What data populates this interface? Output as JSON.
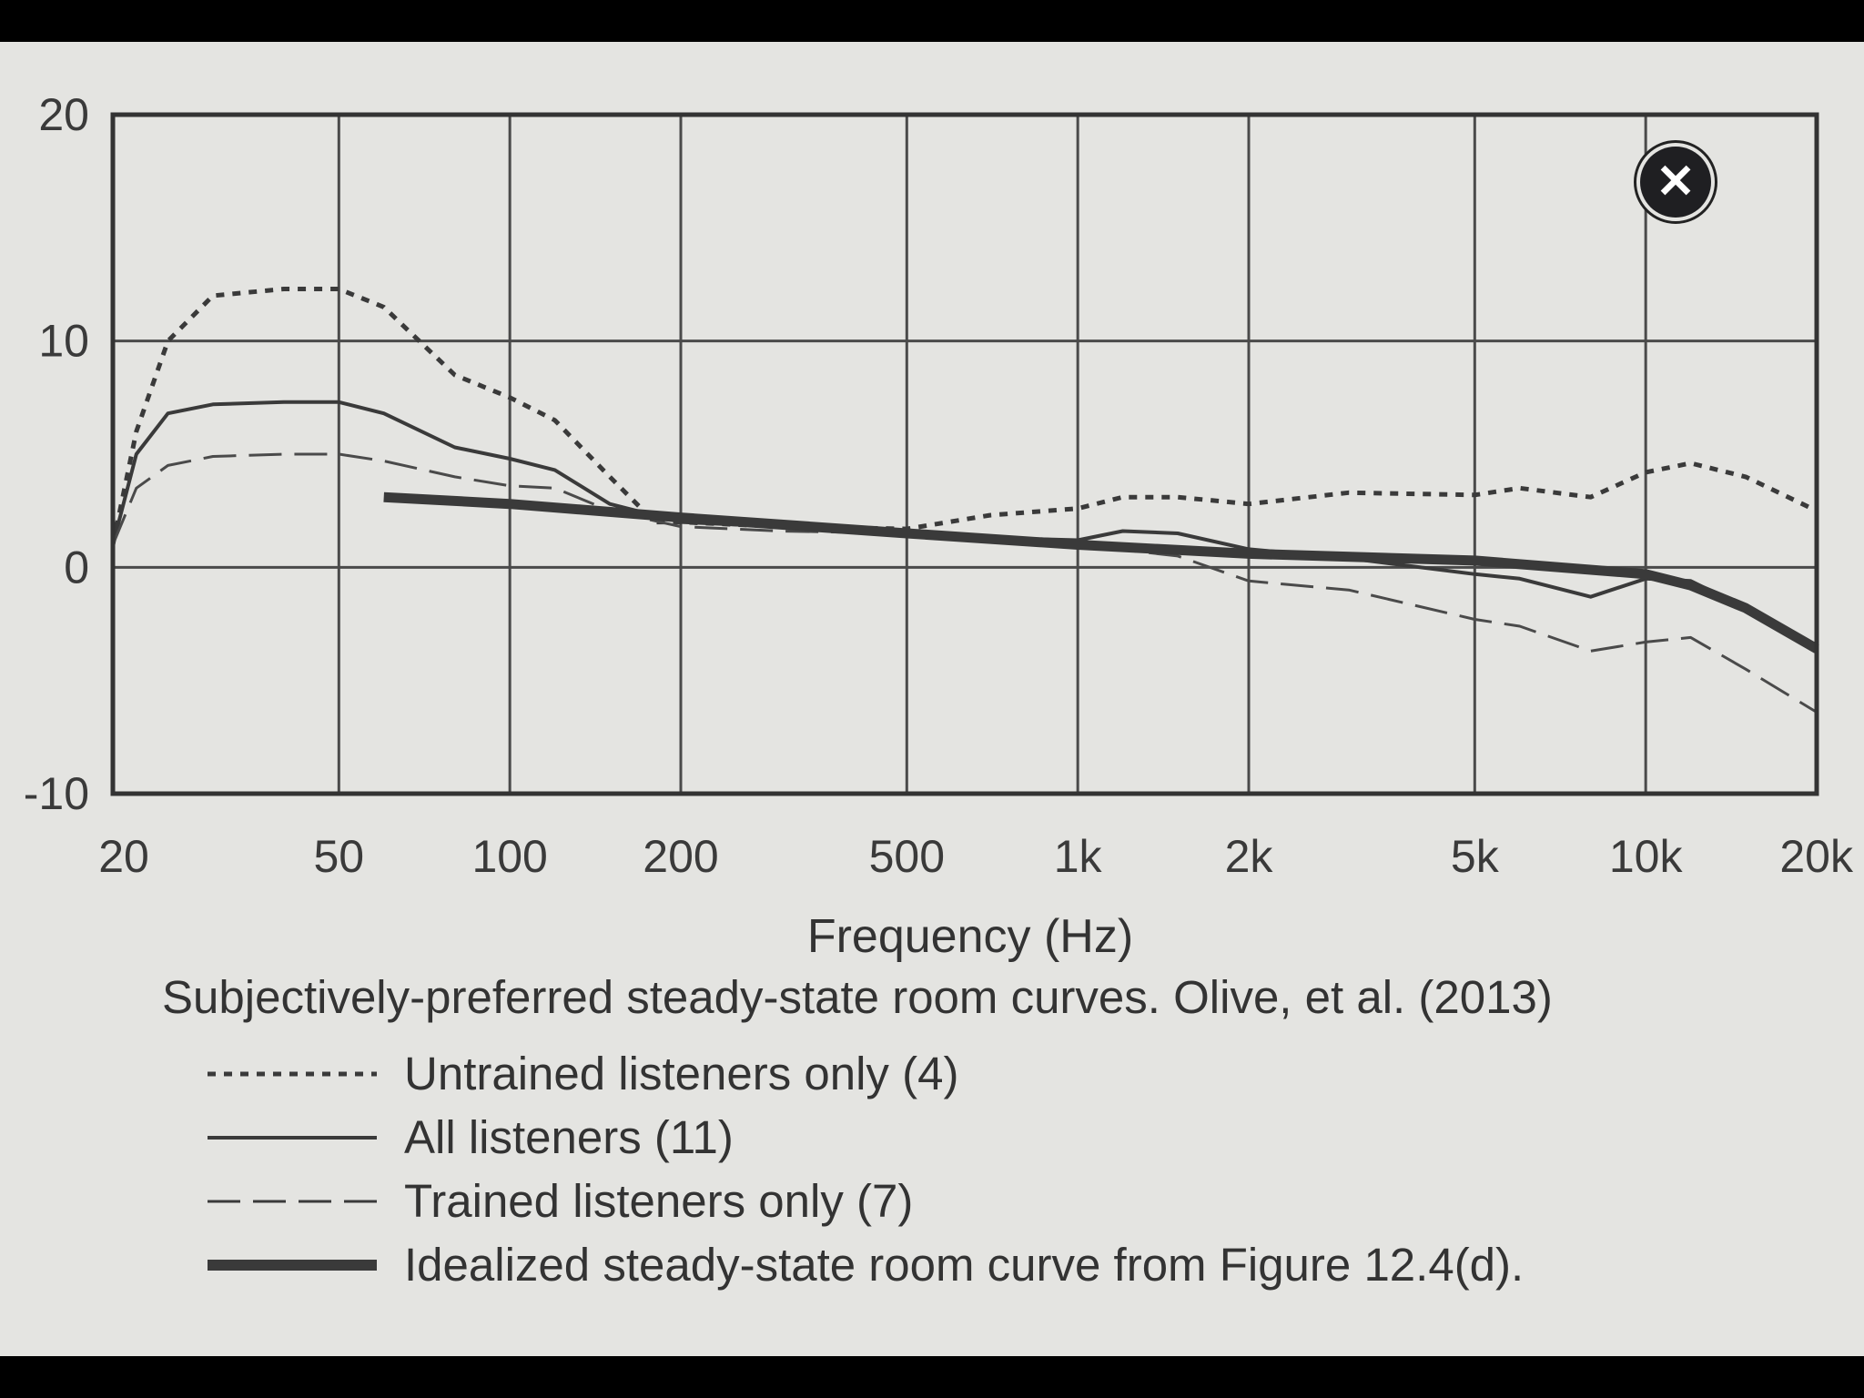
{
  "chart_data": {
    "type": "line",
    "title": "Subjectively-preferred steady-state room curves. Olive, et al. (2013)",
    "xlabel": "Frequency (Hz)",
    "ylabel": "",
    "xscale": "log",
    "xlim": [
      20,
      20000
    ],
    "ylim": [
      -10,
      20
    ],
    "xticks": [
      20,
      50,
      100,
      200,
      500,
      1000,
      2000,
      5000,
      10000,
      20000
    ],
    "xtick_labels": [
      "20",
      "50",
      "100",
      "200",
      "500",
      "1k",
      "2k",
      "5k",
      "10k",
      "20k"
    ],
    "yticks": [
      -10,
      0,
      10,
      20
    ],
    "ytick_labels": [
      "-10",
      "0",
      "10",
      "20"
    ],
    "grid": true,
    "legend_position": "below",
    "series": [
      {
        "name": "Untrained listeners only (4)",
        "style": "dotted",
        "x": [
          20,
          22,
          25,
          30,
          40,
          50,
          60,
          80,
          100,
          120,
          150,
          180,
          200,
          300,
          500,
          700,
          1000,
          1200,
          1500,
          2000,
          3000,
          5000,
          6000,
          8000,
          10000,
          12000,
          15000,
          20000
        ],
        "y": [
          1,
          6,
          10,
          12,
          12.3,
          12.3,
          11.5,
          8.5,
          7.5,
          6.5,
          4,
          2,
          2,
          1.8,
          1.7,
          2.3,
          2.6,
          3.1,
          3.1,
          2.8,
          3.3,
          3.2,
          3.5,
          3.1,
          4.2,
          4.6,
          4.0,
          2.5
        ]
      },
      {
        "name": "All listeners (11)",
        "style": "solid",
        "x": [
          20,
          22,
          25,
          30,
          40,
          50,
          60,
          80,
          100,
          120,
          150,
          200,
          300,
          500,
          700,
          1000,
          1200,
          1500,
          2000,
          3000,
          5000,
          6000,
          8000,
          10000,
          12000,
          15000,
          20000
        ],
        "y": [
          1,
          5,
          6.8,
          7.2,
          7.3,
          7.3,
          6.8,
          5.3,
          4.8,
          4.3,
          2.8,
          2,
          1.8,
          1.5,
          1.3,
          1.2,
          1.6,
          1.5,
          0.8,
          0.4,
          -0.3,
          -0.5,
          -1.3,
          -0.5,
          -0.6,
          -1.8,
          -3.6
        ]
      },
      {
        "name": "Trained listeners only (7)",
        "style": "dashed",
        "x": [
          20,
          22,
          25,
          30,
          40,
          50,
          60,
          80,
          100,
          120,
          150,
          200,
          300,
          500,
          700,
          1000,
          1500,
          2000,
          3000,
          5000,
          6000,
          8000,
          10000,
          12000,
          15000,
          20000
        ],
        "y": [
          1,
          3.5,
          4.5,
          4.9,
          5,
          5,
          4.7,
          4,
          3.6,
          3.5,
          2.5,
          1.8,
          1.6,
          1.5,
          1.3,
          1.0,
          0.5,
          -0.6,
          -1.0,
          -2.3,
          -2.6,
          -3.7,
          -3.3,
          -3.1,
          -4.5,
          -6.4
        ]
      },
      {
        "name": "Idealized steady-state room curve from Figure 12.4(d).",
        "style": "thick",
        "x": [
          60,
          100,
          200,
          500,
          1000,
          2000,
          5000,
          10000,
          12000,
          15000,
          20000
        ],
        "y": [
          3.1,
          2.8,
          2.2,
          1.5,
          1.0,
          0.6,
          0.3,
          -0.3,
          -0.8,
          -1.8,
          -3.6
        ]
      }
    ]
  },
  "caption": "Subjectively-preferred steady-state room curves. Olive, et al. (2013)",
  "legend": {
    "items": [
      {
        "label": "Untrained listeners only (4)",
        "style": "dotted"
      },
      {
        "label": "All listeners (11)",
        "style": "solid"
      },
      {
        "label": "Trained listeners only (7)",
        "style": "dashed"
      },
      {
        "label": "Idealized steady-state room curve from Figure 12.4(d).",
        "style": "thick"
      }
    ]
  },
  "close_button": {
    "icon": "close-icon",
    "glyph": "✕"
  },
  "colors": {
    "background": "#e4e4e1",
    "frame": "#000000",
    "line": "#3c3c3c",
    "grid": "#4a4a4a"
  }
}
